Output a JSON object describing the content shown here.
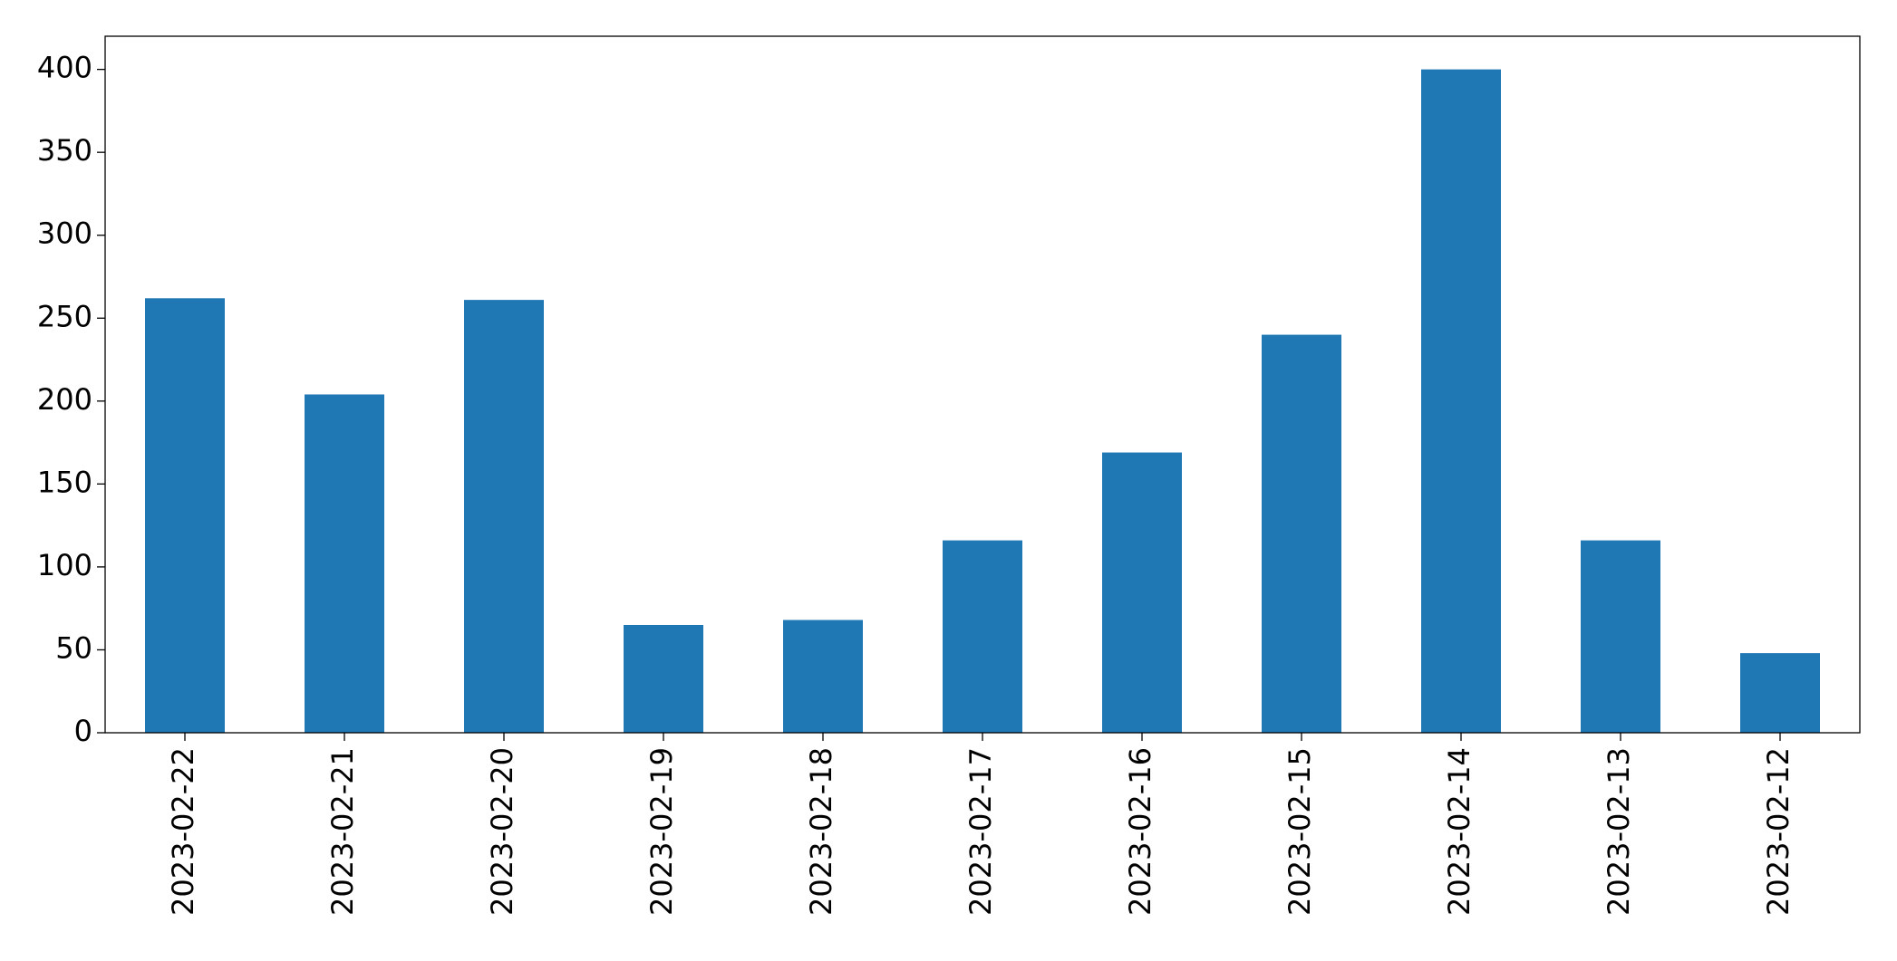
{
  "chart_data": {
    "type": "bar",
    "categories": [
      "2023-02-22",
      "2023-02-21",
      "2023-02-20",
      "2023-02-19",
      "2023-02-18",
      "2023-02-17",
      "2023-02-16",
      "2023-02-15",
      "2023-02-14",
      "2023-02-13",
      "2023-02-12"
    ],
    "values": [
      262,
      204,
      261,
      65,
      68,
      116,
      169,
      240,
      400,
      116,
      48
    ],
    "color": "#1f77b4",
    "ylim": [
      0,
      420
    ],
    "yticks": [
      0,
      50,
      100,
      150,
      200,
      250,
      300,
      350,
      400
    ],
    "grid": false
  }
}
